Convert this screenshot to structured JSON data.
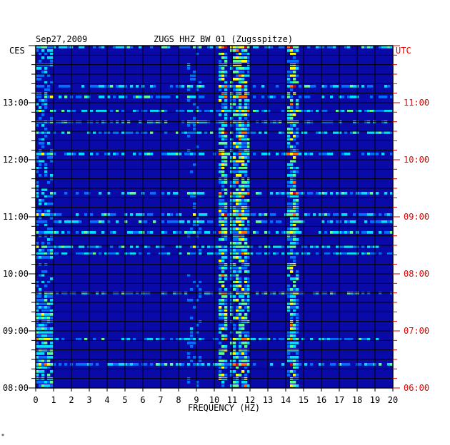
{
  "header": {
    "date": "Sep27,2009",
    "station": "ZUGS HHZ BW 01 (Zugsspitze)"
  },
  "axes": {
    "left_zone": "CES",
    "right_zone": "UTC",
    "xlabel": "FREQUENCY (HZ)"
  },
  "footer": {
    "mark": "*"
  },
  "colors": {
    "background": "#0a0aa8",
    "grid": "#000000",
    "utc": "#e00000",
    "text": "#000000"
  },
  "chart_data": {
    "type": "heatmap",
    "title": "ZUGS HHZ BW 01 (Zugsspitze)",
    "xlabel": "FREQUENCY (HZ)",
    "x_ticks": [
      0,
      1,
      2,
      3,
      4,
      5,
      6,
      7,
      8,
      9,
      10,
      11,
      12,
      13,
      14,
      15,
      16,
      17,
      18,
      19,
      20
    ],
    "xlim": [
      0,
      20
    ],
    "y_ticks_ces": [
      "13:00",
      "12:00",
      "11:00",
      "10:00",
      "09:00",
      "08:00"
    ],
    "y_ticks_utc": [
      "11:00",
      "10:00",
      "09:00",
      "08:00",
      "07:00",
      "06:00"
    ],
    "time_range_ces": [
      "08:00",
      "14:00"
    ],
    "color_scale": [
      "#00008c",
      "#0000ff",
      "#0070ff",
      "#00e0ff",
      "#60ff90",
      "#ffff00",
      "#ff7000",
      "#e00000"
    ],
    "dominant_bands_hz": [
      10.5,
      11.2,
      11.7,
      14.4
    ]
  }
}
